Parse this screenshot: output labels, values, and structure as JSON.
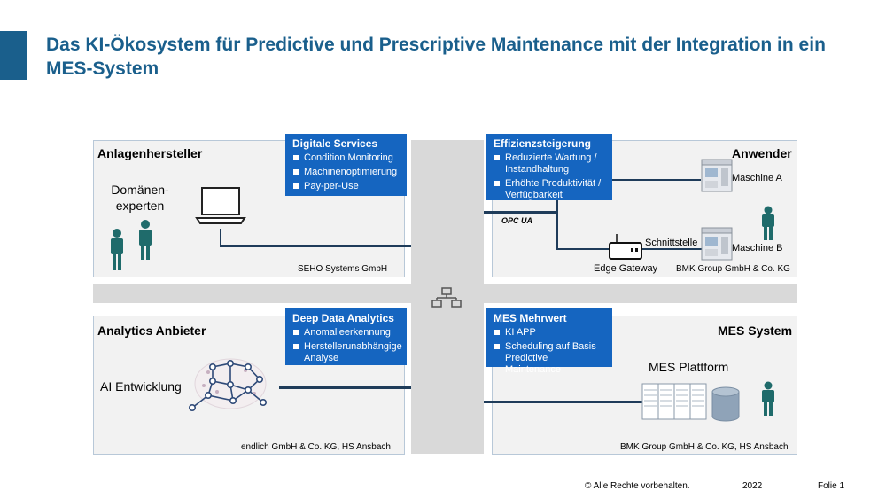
{
  "title": "Das KI-Ökosystem für Predictive und Prescriptive Maintenance mit der Integration in ein MES-System",
  "colors": {
    "accent": "#1a5f8c",
    "box_blue": "#1565c0",
    "person": "#1f6b6b",
    "line": "#1f3c5a"
  },
  "quadrants": {
    "top_left": {
      "title": "Anlagenhersteller",
      "label": "Domänen-\nexperten",
      "footer": "SEHO Systems GmbH",
      "box": {
        "title": "Digitale Services",
        "items": [
          "Condition Monitoring",
          "Machinenoptimierung",
          "Pay-per-Use"
        ]
      }
    },
    "top_right": {
      "title": "Anwender",
      "footer": "BMK Group GmbH & Co. KG",
      "box": {
        "title": "Effizienzsteigerung",
        "items": [
          "Reduzierte Wartung / Instandhaltung",
          "Erhöhte Produktivität / Verfügbarkeit"
        ]
      },
      "machine_a": "Maschine A",
      "machine_b": "Maschine B",
      "interface": "Schnittstelle",
      "gateway": "Edge Gateway",
      "opcua": "OPC UA"
    },
    "bottom_left": {
      "title": "Analytics Anbieter",
      "label": "AI Entwicklung",
      "footer": "endlich GmbH & Co. KG, HS Ansbach",
      "box": {
        "title": "Deep Data Analytics",
        "items": [
          "Anomalieerkennung",
          "Herstellerunabhängige Analyse"
        ]
      }
    },
    "bottom_right": {
      "title": "MES System",
      "label": "MES Plattform",
      "footer": "BMK Group GmbH & Co. KG, HS Ansbach",
      "box": {
        "title": "MES Mehrwert",
        "items": [
          "KI APP",
          "Scheduling auf Basis Predictive Maintenance"
        ]
      }
    }
  },
  "footer": {
    "copyright": "© Alle Rechte vorbehalten.",
    "year": "2022",
    "slide": "Folie 1"
  }
}
